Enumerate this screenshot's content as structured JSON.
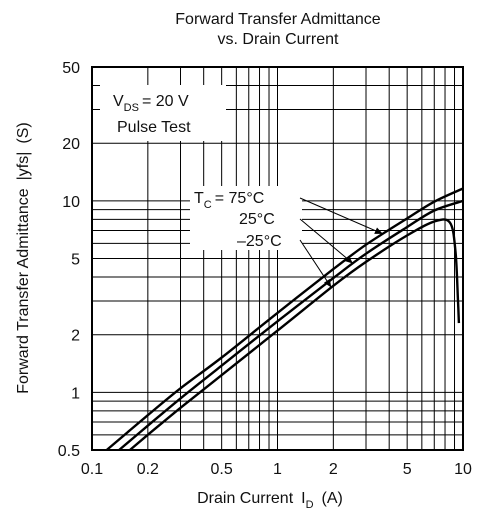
{
  "chart_data": {
    "type": "line",
    "title": "Forward Transfer Admittance",
    "subtitle": "vs. Drain Current",
    "xlabel": "Drain Current",
    "xlabel_symbol": "I",
    "xlabel_symbol_sub": "D",
    "xlabel_unit": "(A)",
    "ylabel": "Forward Transfer Admittance",
    "ylabel_symbol": "|yfs|",
    "ylabel_unit": "(S)",
    "x_scale": "log",
    "y_scale": "log",
    "xlim": [
      0.1,
      10
    ],
    "ylim": [
      0.5,
      50
    ],
    "grid": true,
    "x_ticks": [
      0.1,
      0.2,
      0.5,
      1,
      2,
      5,
      10
    ],
    "x_tick_labels": [
      "0.1",
      "0.2",
      "0.5",
      "1",
      "2",
      "5",
      "10"
    ],
    "y_ticks": [
      0.5,
      1,
      2,
      5,
      10,
      20,
      50
    ],
    "y_tick_labels": [
      "0.5",
      "1",
      "2",
      "5",
      "10",
      "20",
      "50"
    ],
    "conditions": {
      "vds_symbol": "V",
      "vds_sub": "DS",
      "vds_value": "= 20 V",
      "test": "Pulse Test"
    },
    "series": [
      {
        "name": "T_C = 75°C",
        "x": [
          0.12,
          0.2,
          0.3,
          0.5,
          1,
          2,
          3,
          5,
          7,
          10
        ],
        "y": [
          0.5,
          0.76,
          1.05,
          1.52,
          2.6,
          4.4,
          5.9,
          8.1,
          9.9,
          11.6
        ]
      },
      {
        "name": "25°C",
        "x": [
          0.14,
          0.2,
          0.3,
          0.5,
          1,
          2,
          3,
          5,
          7,
          10
        ],
        "y": [
          0.5,
          0.67,
          0.93,
          1.38,
          2.35,
          3.95,
          5.3,
          7.3,
          8.9,
          10
        ]
      },
      {
        "name": "–25°C",
        "x": [
          0.16,
          0.2,
          0.3,
          0.5,
          1,
          2,
          3,
          5,
          7,
          8.5,
          9.1,
          9.4,
          9.5
        ],
        "y": [
          0.5,
          0.6,
          0.83,
          1.23,
          2.1,
          3.6,
          4.8,
          6.6,
          7.8,
          7.7,
          5.5,
          3,
          2.3
        ]
      }
    ],
    "series_labels": {
      "tc_symbol": "T",
      "tc_sub": "C",
      "tc_value": "= 75°C",
      "mid": "25°C",
      "low": "–25°C"
    }
  }
}
